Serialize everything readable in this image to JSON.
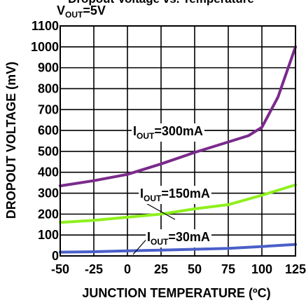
{
  "chart_data": {
    "type": "line",
    "title": "Dropout Voltage vs. Temperature",
    "subtitle_base": "V",
    "subtitle_sub": "OUT",
    "subtitle_rest": "=5V",
    "xlabel": "JUNCTION TEMPERATURE (ºC)",
    "ylabel": "DROPOUT VOLTAGE (mV)",
    "xlim": [
      -50,
      125
    ],
    "ylim": [
      0,
      1100
    ],
    "xticks": [
      "-50",
      "-25",
      "0",
      "25",
      "50",
      "75",
      "100",
      "125"
    ],
    "yticks": [
      "0",
      "100",
      "200",
      "300",
      "400",
      "500",
      "600",
      "700",
      "800",
      "900",
      "1000",
      "1100"
    ],
    "grid": true,
    "series": [
      {
        "name_base": "I",
        "name_sub": "OUT",
        "name_rest": "=300mA",
        "color": "#7b2a8c",
        "x": [
          -50,
          -25,
          0,
          25,
          50,
          75,
          90,
          100,
          112,
          125
        ],
        "y": [
          335,
          360,
          390,
          440,
          495,
          545,
          575,
          615,
          760,
          1000
        ]
      },
      {
        "name_base": "I",
        "name_sub": "OUT",
        "name_rest": "=150mA",
        "color": "#8ef01c",
        "x": [
          -50,
          -25,
          0,
          25,
          50,
          75,
          100,
          125
        ],
        "y": [
          160,
          170,
          185,
          200,
          225,
          245,
          290,
          340
        ]
      },
      {
        "name_base": "I",
        "name_sub": "OUT",
        "name_rest": "=30mA",
        "color": "#4a5fc8",
        "x": [
          -50,
          -25,
          0,
          25,
          50,
          75,
          100,
          125
        ],
        "y": [
          18,
          20,
          24,
          28,
          32,
          36,
          45,
          55
        ]
      }
    ]
  }
}
